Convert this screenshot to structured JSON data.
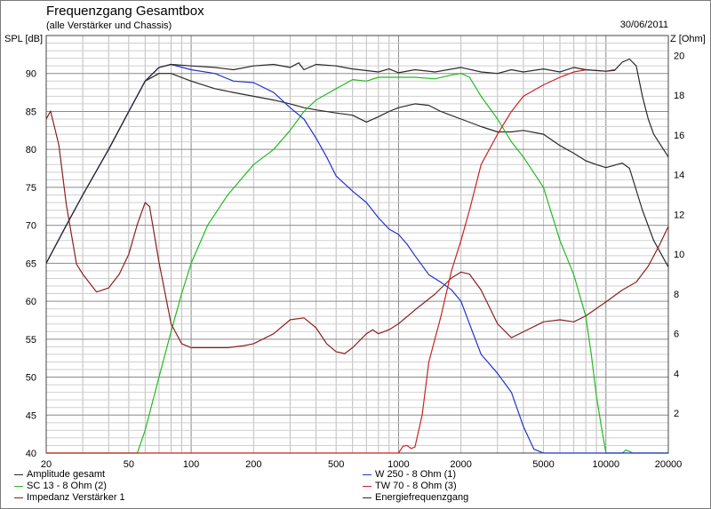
{
  "chart_data": {
    "type": "line",
    "title": "Frequenzgang Gesamtbox",
    "subtitle": "(alle Verstärker und Chassis)",
    "date": "30/06/2011",
    "ylabel": "SPL [dB]",
    "y2label": "Z [Ohm]",
    "x_scale": "log",
    "xlim": [
      20,
      20000
    ],
    "ylim": [
      40,
      95
    ],
    "y2lim": [
      0,
      21
    ],
    "grid": true,
    "legend_position": "bottom",
    "x_ticks": [
      "20",
      "50",
      "100",
      "200",
      "500",
      "1000",
      "2000",
      "5000",
      "10000",
      "20000"
    ],
    "y_ticks": [
      "40",
      "45",
      "50",
      "55",
      "60",
      "65",
      "70",
      "75",
      "80",
      "85",
      "90"
    ],
    "y2_ticks": [
      "2",
      "4",
      "6",
      "8",
      "10",
      "12",
      "14",
      "16",
      "18",
      "20"
    ],
    "series": [
      {
        "name": "Amplitude gesamt",
        "color": "#2a2a2a",
        "axis": "left",
        "points": [
          [
            20,
            65
          ],
          [
            25,
            70
          ],
          [
            30,
            74
          ],
          [
            40,
            80
          ],
          [
            50,
            85
          ],
          [
            60,
            89
          ],
          [
            70,
            90
          ],
          [
            80,
            90
          ],
          [
            100,
            89
          ],
          [
            130,
            88
          ],
          [
            160,
            87.5
          ],
          [
            200,
            87
          ],
          [
            250,
            86.5
          ],
          [
            300,
            86
          ],
          [
            350,
            85.5
          ],
          [
            400,
            85.2
          ],
          [
            500,
            84.8
          ],
          [
            600,
            84.5
          ],
          [
            700,
            83.6
          ],
          [
            800,
            84.3
          ],
          [
            900,
            85
          ],
          [
            1000,
            85.5
          ],
          [
            1200,
            86
          ],
          [
            1400,
            85.8
          ],
          [
            1600,
            85
          ],
          [
            2000,
            84
          ],
          [
            2500,
            83
          ],
          [
            3000,
            82.3
          ],
          [
            3500,
            82.3
          ],
          [
            4000,
            82.5
          ],
          [
            5000,
            82
          ],
          [
            6000,
            80.5
          ],
          [
            7000,
            79.5
          ],
          [
            8000,
            78.5
          ],
          [
            9000,
            78
          ],
          [
            10000,
            77.6
          ],
          [
            12000,
            78.2
          ],
          [
            13000,
            77.5
          ],
          [
            15000,
            72
          ],
          [
            17000,
            68
          ],
          [
            20000,
            64.5
          ]
        ]
      },
      {
        "name": "SC 13 - 8 Ohm (2)",
        "color": "#22bb22",
        "axis": "left",
        "points": [
          [
            20,
            40
          ],
          [
            55,
            40
          ],
          [
            60,
            43
          ],
          [
            70,
            50
          ],
          [
            80,
            56
          ],
          [
            90,
            61
          ],
          [
            100,
            65
          ],
          [
            120,
            70
          ],
          [
            150,
            74
          ],
          [
            200,
            78
          ],
          [
            250,
            80
          ],
          [
            300,
            82.5
          ],
          [
            350,
            85
          ],
          [
            400,
            86.5
          ],
          [
            500,
            88
          ],
          [
            600,
            89.2
          ],
          [
            700,
            89
          ],
          [
            800,
            89.5
          ],
          [
            1000,
            89.5
          ],
          [
            1200,
            89.5
          ],
          [
            1500,
            89.3
          ],
          [
            1800,
            89.8
          ],
          [
            2000,
            90
          ],
          [
            2200,
            89.5
          ],
          [
            2500,
            87
          ],
          [
            3000,
            84
          ],
          [
            3500,
            81
          ],
          [
            4000,
            79
          ],
          [
            5000,
            75
          ],
          [
            6000,
            68
          ],
          [
            7000,
            63.5
          ],
          [
            8000,
            58
          ],
          [
            8500,
            53
          ],
          [
            9000,
            47.5
          ],
          [
            9500,
            43.5
          ],
          [
            10000,
            40
          ],
          [
            12000,
            40
          ],
          [
            12500,
            40.4
          ],
          [
            13500,
            40
          ],
          [
            20000,
            40
          ]
        ]
      },
      {
        "name": "Impedanz Verstärker 1",
        "color": "#8b2020",
        "axis": "right",
        "points": [
          [
            20,
            16.8
          ],
          [
            21,
            17.2
          ],
          [
            23,
            15.5
          ],
          [
            25,
            12.5
          ],
          [
            28,
            9.5
          ],
          [
            30,
            9
          ],
          [
            35,
            8.1
          ],
          [
            40,
            8.3
          ],
          [
            45,
            9
          ],
          [
            50,
            10
          ],
          [
            55,
            11.5
          ],
          [
            60,
            12.6
          ],
          [
            63,
            12.4
          ],
          [
            70,
            9.6
          ],
          [
            80,
            6.5
          ],
          [
            90,
            5.5
          ],
          [
            100,
            5.3
          ],
          [
            150,
            5.3
          ],
          [
            180,
            5.4
          ],
          [
            200,
            5.5
          ],
          [
            250,
            6
          ],
          [
            300,
            6.7
          ],
          [
            350,
            6.8
          ],
          [
            400,
            6.3
          ],
          [
            450,
            5.5
          ],
          [
            500,
            5.1
          ],
          [
            550,
            5
          ],
          [
            600,
            5.3
          ],
          [
            700,
            6
          ],
          [
            750,
            6.2
          ],
          [
            800,
            6
          ],
          [
            900,
            6.2
          ],
          [
            1000,
            6.5
          ],
          [
            1200,
            7.2
          ],
          [
            1500,
            8
          ],
          [
            1800,
            8.8
          ],
          [
            2000,
            9.1
          ],
          [
            2200,
            9
          ],
          [
            2500,
            8.2
          ],
          [
            3000,
            6.5
          ],
          [
            3500,
            5.8
          ],
          [
            4000,
            6.1
          ],
          [
            5000,
            6.6
          ],
          [
            6000,
            6.7
          ],
          [
            7000,
            6.6
          ],
          [
            8000,
            6.9
          ],
          [
            10000,
            7.6
          ],
          [
            12000,
            8.2
          ],
          [
            14000,
            8.6
          ],
          [
            16000,
            9.4
          ],
          [
            18000,
            10.4
          ],
          [
            20000,
            11.4
          ]
        ]
      },
      {
        "name": "W 250 - 8 Ohm (1)",
        "color": "#2233cc",
        "axis": "left",
        "points": [
          [
            20,
            65
          ],
          [
            25,
            70
          ],
          [
            30,
            74
          ],
          [
            40,
            80
          ],
          [
            50,
            85
          ],
          [
            60,
            89
          ],
          [
            70,
            90.8
          ],
          [
            80,
            91.2
          ],
          [
            100,
            90.5
          ],
          [
            130,
            90
          ],
          [
            160,
            89
          ],
          [
            200,
            88.8
          ],
          [
            250,
            87.5
          ],
          [
            300,
            85.5
          ],
          [
            350,
            84
          ],
          [
            400,
            81.5
          ],
          [
            450,
            79
          ],
          [
            500,
            76.5
          ],
          [
            600,
            74.5
          ],
          [
            700,
            73
          ],
          [
            800,
            71
          ],
          [
            900,
            69.5
          ],
          [
            1000,
            68.8
          ],
          [
            1100,
            67.5
          ],
          [
            1200,
            66
          ],
          [
            1400,
            63.5
          ],
          [
            1600,
            62.5
          ],
          [
            1800,
            61.5
          ],
          [
            2000,
            60
          ],
          [
            2200,
            57
          ],
          [
            2500,
            53
          ],
          [
            3000,
            50.5
          ],
          [
            3500,
            48
          ],
          [
            4000,
            43.5
          ],
          [
            4500,
            40.5
          ],
          [
            5000,
            40
          ],
          [
            20000,
            40
          ]
        ]
      },
      {
        "name": "TW 70 - 8 Ohm (3)",
        "color": "#cc2222",
        "axis": "left",
        "points": [
          [
            20,
            40
          ],
          [
            1000,
            40
          ],
          [
            1050,
            40.9
          ],
          [
            1100,
            41
          ],
          [
            1150,
            40.6
          ],
          [
            1200,
            40.8
          ],
          [
            1300,
            45
          ],
          [
            1400,
            52
          ],
          [
            1600,
            58
          ],
          [
            1800,
            64
          ],
          [
            2000,
            68
          ],
          [
            2200,
            72
          ],
          [
            2500,
            78
          ],
          [
            3000,
            82
          ],
          [
            3500,
            85
          ],
          [
            4000,
            87
          ],
          [
            5000,
            88.5
          ],
          [
            6000,
            89.5
          ],
          [
            7000,
            90.2
          ],
          [
            8000,
            90.5
          ],
          [
            10000,
            90.3
          ],
          [
            11000,
            90.5
          ]
        ]
      },
      {
        "name": "Energiefrequenzgang",
        "color": "#2a2a2a",
        "axis": "left",
        "points": [
          [
            20,
            65
          ],
          [
            25,
            70
          ],
          [
            30,
            74
          ],
          [
            40,
            80
          ],
          [
            50,
            85
          ],
          [
            60,
            89
          ],
          [
            70,
            90.8
          ],
          [
            80,
            91.2
          ],
          [
            100,
            91
          ],
          [
            130,
            90.8
          ],
          [
            160,
            90.5
          ],
          [
            200,
            91
          ],
          [
            250,
            91.2
          ],
          [
            300,
            90.8
          ],
          [
            330,
            91.4
          ],
          [
            350,
            90.5
          ],
          [
            400,
            91.2
          ],
          [
            500,
            91
          ],
          [
            600,
            90.6
          ],
          [
            800,
            90.2
          ],
          [
            900,
            90.6
          ],
          [
            1000,
            90.1
          ],
          [
            1200,
            90.5
          ],
          [
            1500,
            90.2
          ],
          [
            2000,
            90.8
          ],
          [
            2500,
            90.2
          ],
          [
            3000,
            90
          ],
          [
            3500,
            90.5
          ],
          [
            4000,
            90.2
          ],
          [
            5000,
            90.6
          ],
          [
            6000,
            90.2
          ],
          [
            7000,
            90.8
          ],
          [
            8000,
            90.5
          ],
          [
            10000,
            90.3
          ],
          [
            11000,
            90.4
          ],
          [
            12000,
            91.5
          ],
          [
            13000,
            91.9
          ],
          [
            14000,
            91
          ],
          [
            15000,
            87
          ],
          [
            16000,
            84
          ],
          [
            17000,
            82
          ],
          [
            20000,
            79
          ]
        ]
      }
    ]
  }
}
